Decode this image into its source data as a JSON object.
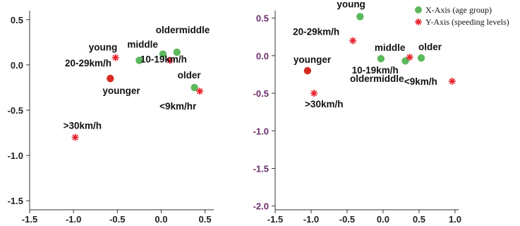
{
  "chart_data": [
    {
      "type": "scatter",
      "xlim": [
        -1.5,
        0.6
      ],
      "ylim": [
        -1.6,
        0.6
      ],
      "xticks": [
        "-1.5",
        "-1.0",
        "-0.5",
        "0.0",
        "0.5"
      ],
      "yticks": [
        "0.5",
        "0.0",
        "-0.5",
        "-1.0",
        "-1.5"
      ],
      "tick_color": "#222222",
      "series": [
        {
          "marker": "circle",
          "color": "#5cb85c",
          "points": [
            {
              "x": -0.25,
              "y": 0.05,
              "label": "middle"
            },
            {
              "x": 0.02,
              "y": 0.12,
              "label": ""
            },
            {
              "x": 0.18,
              "y": 0.14,
              "label": "oldermiddle"
            },
            {
              "x": 0.38,
              "y": -0.25,
              "label": "older"
            }
          ]
        },
        {
          "marker": "circle",
          "color": "#d62a20",
          "points": [
            {
              "x": -0.58,
              "y": -0.15,
              "label": "younger"
            }
          ]
        },
        {
          "marker": "star",
          "color": "#e8252f",
          "points": [
            {
              "x": -0.52,
              "y": 0.08,
              "label": "young"
            },
            {
              "x": 0.1,
              "y": 0.05,
              "label": "10-19km/h"
            },
            {
              "x": 0.44,
              "y": -0.29,
              "label": "<9km/hr"
            },
            {
              "x": -0.98,
              "y": -0.8,
              "label": ">30km/h"
            }
          ]
        }
      ],
      "annotations": [
        "20-29km/h"
      ]
    },
    {
      "type": "scatter",
      "xlim": [
        -1.5,
        1.05
      ],
      "ylim": [
        -2.05,
        0.6
      ],
      "xticks": [
        "-1.5",
        "-1.0",
        "-0.5",
        "0.0",
        "0.5",
        "1.0"
      ],
      "yticks": [
        "0.5",
        "0.0",
        "-0.5",
        "-1.0",
        "-1.5",
        "-2.0"
      ],
      "tick_color": "#6b2c6b",
      "series": [
        {
          "name": "X-Axis (age group)",
          "marker": "circle",
          "color": "#5cb85c",
          "points": [
            {
              "x": -0.32,
              "y": 0.52,
              "label": "young"
            },
            {
              "x": -0.03,
              "y": -0.04,
              "label": "middle"
            },
            {
              "x": 0.31,
              "y": -0.07,
              "label": ""
            },
            {
              "x": 0.53,
              "y": -0.03,
              "label": "older"
            }
          ]
        },
        {
          "name": "",
          "marker": "circle",
          "color": "#d62a20",
          "points": [
            {
              "x": -1.05,
              "y": -0.2,
              "label": "younger"
            }
          ]
        },
        {
          "name": "Y-Axis (speeding levels)",
          "marker": "star",
          "color": "#e8252f",
          "points": [
            {
              "x": -0.42,
              "y": 0.2,
              "label": "20-29km/h"
            },
            {
              "x": 0.37,
              "y": -0.02,
              "label": "10-19km/h"
            },
            {
              "x": 0.96,
              "y": -0.34,
              "label": "<9km/h"
            },
            {
              "x": -0.96,
              "y": -0.5,
              "label": ">30km/h"
            }
          ]
        }
      ],
      "annotations": [
        "oldermiddle"
      ],
      "legend_position": "top-right"
    }
  ]
}
